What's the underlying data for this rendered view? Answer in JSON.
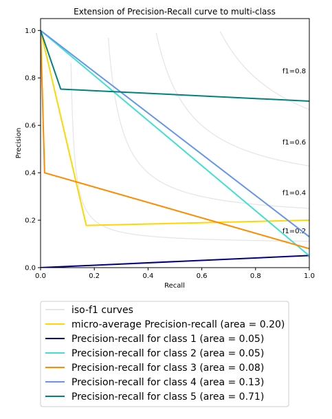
{
  "chart_data": {
    "type": "line",
    "title": "Extension of Precision-Recall curve to multi-class",
    "xlabel": "Recall",
    "ylabel": "Precision",
    "xlim": [
      0.0,
      1.0
    ],
    "ylim": [
      0.0,
      1.05
    ],
    "xticks": [
      "0.0",
      "0.2",
      "0.4",
      "0.6",
      "0.8",
      "1.0"
    ],
    "yticks": [
      "0.0",
      "0.2",
      "0.4",
      "0.6",
      "0.8",
      "1.0"
    ],
    "grid": false,
    "legend_placement": "below plot",
    "iso_f1": {
      "label": "iso-f1 curves",
      "color": "#e6e6e6",
      "values": [
        0.2,
        0.4,
        0.6,
        0.8
      ],
      "annotations": [
        "f1=0.2",
        "f1=0.4",
        "f1=0.6",
        "f1=0.8"
      ]
    },
    "series": [
      {
        "name": "micro-average Precision-recall (area = 0.20)",
        "color": "#ffd700",
        "x": [
          0.0,
          0.17,
          1.0
        ],
        "y": [
          1.0,
          0.178,
          0.2
        ]
      },
      {
        "name": "Precision-recall for class 1 (area = 0.05)",
        "color": "#000080",
        "x": [
          0.0,
          1.0
        ],
        "y": [
          0.0,
          0.051
        ]
      },
      {
        "name": "Precision-recall for class 2 (area = 0.05)",
        "color": "#40e0d0",
        "x": [
          0.0,
          1.0,
          1.0
        ],
        "y": [
          1.0,
          0.05,
          0.04
        ]
      },
      {
        "name": "Precision-recall for class 3 (area = 0.08)",
        "color": "#ff8c00",
        "x": [
          0.0,
          0.015,
          1.0
        ],
        "y": [
          1.0,
          0.4,
          0.08
        ]
      },
      {
        "name": "Precision-recall for class 4 (area = 0.13)",
        "color": "#6495ed",
        "x": [
          0.0,
          1.0
        ],
        "y": [
          1.0,
          0.13
        ]
      },
      {
        "name": "Precision-recall for class 5 (area = 0.71)",
        "color": "#008080",
        "x": [
          0.0,
          0.075,
          1.0
        ],
        "y": [
          1.0,
          0.753,
          0.702
        ]
      }
    ]
  }
}
